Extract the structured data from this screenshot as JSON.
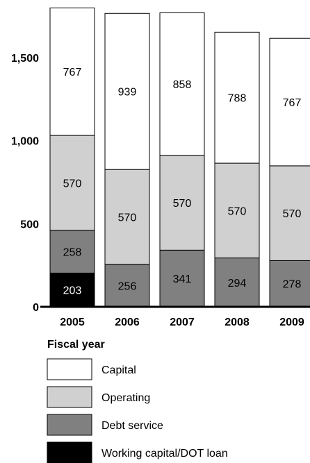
{
  "chart_data": {
    "type": "bar",
    "stacked": true,
    "xlabel": "Fiscal year",
    "categories": [
      "2005",
      "2006",
      "2007",
      "2008",
      "2009"
    ],
    "ylim": [
      0,
      1800
    ],
    "yticks": [
      0,
      500,
      1000,
      1500
    ],
    "ytick_labels": [
      "0",
      "500",
      "1,000",
      "1,500"
    ],
    "legend_position": "bottom",
    "series": [
      {
        "name": "Working capital/DOT loan",
        "color": "#000000",
        "label_color": "#ffffff",
        "values": [
          203,
          0,
          0,
          0,
          0
        ]
      },
      {
        "name": "Debt service",
        "color": "#808080",
        "label_color": "#000000",
        "values": [
          258,
          256,
          341,
          294,
          278
        ]
      },
      {
        "name": "Operating",
        "color": "#d0d0d0",
        "label_color": "#000000",
        "values": [
          570,
          570,
          570,
          570,
          570
        ]
      },
      {
        "name": "Capital",
        "color": "#ffffff",
        "label_color": "#000000",
        "values": [
          767,
          939,
          858,
          788,
          767
        ]
      }
    ],
    "legend_order": [
      "Capital",
      "Operating",
      "Debt service",
      "Working capital/DOT loan"
    ]
  }
}
